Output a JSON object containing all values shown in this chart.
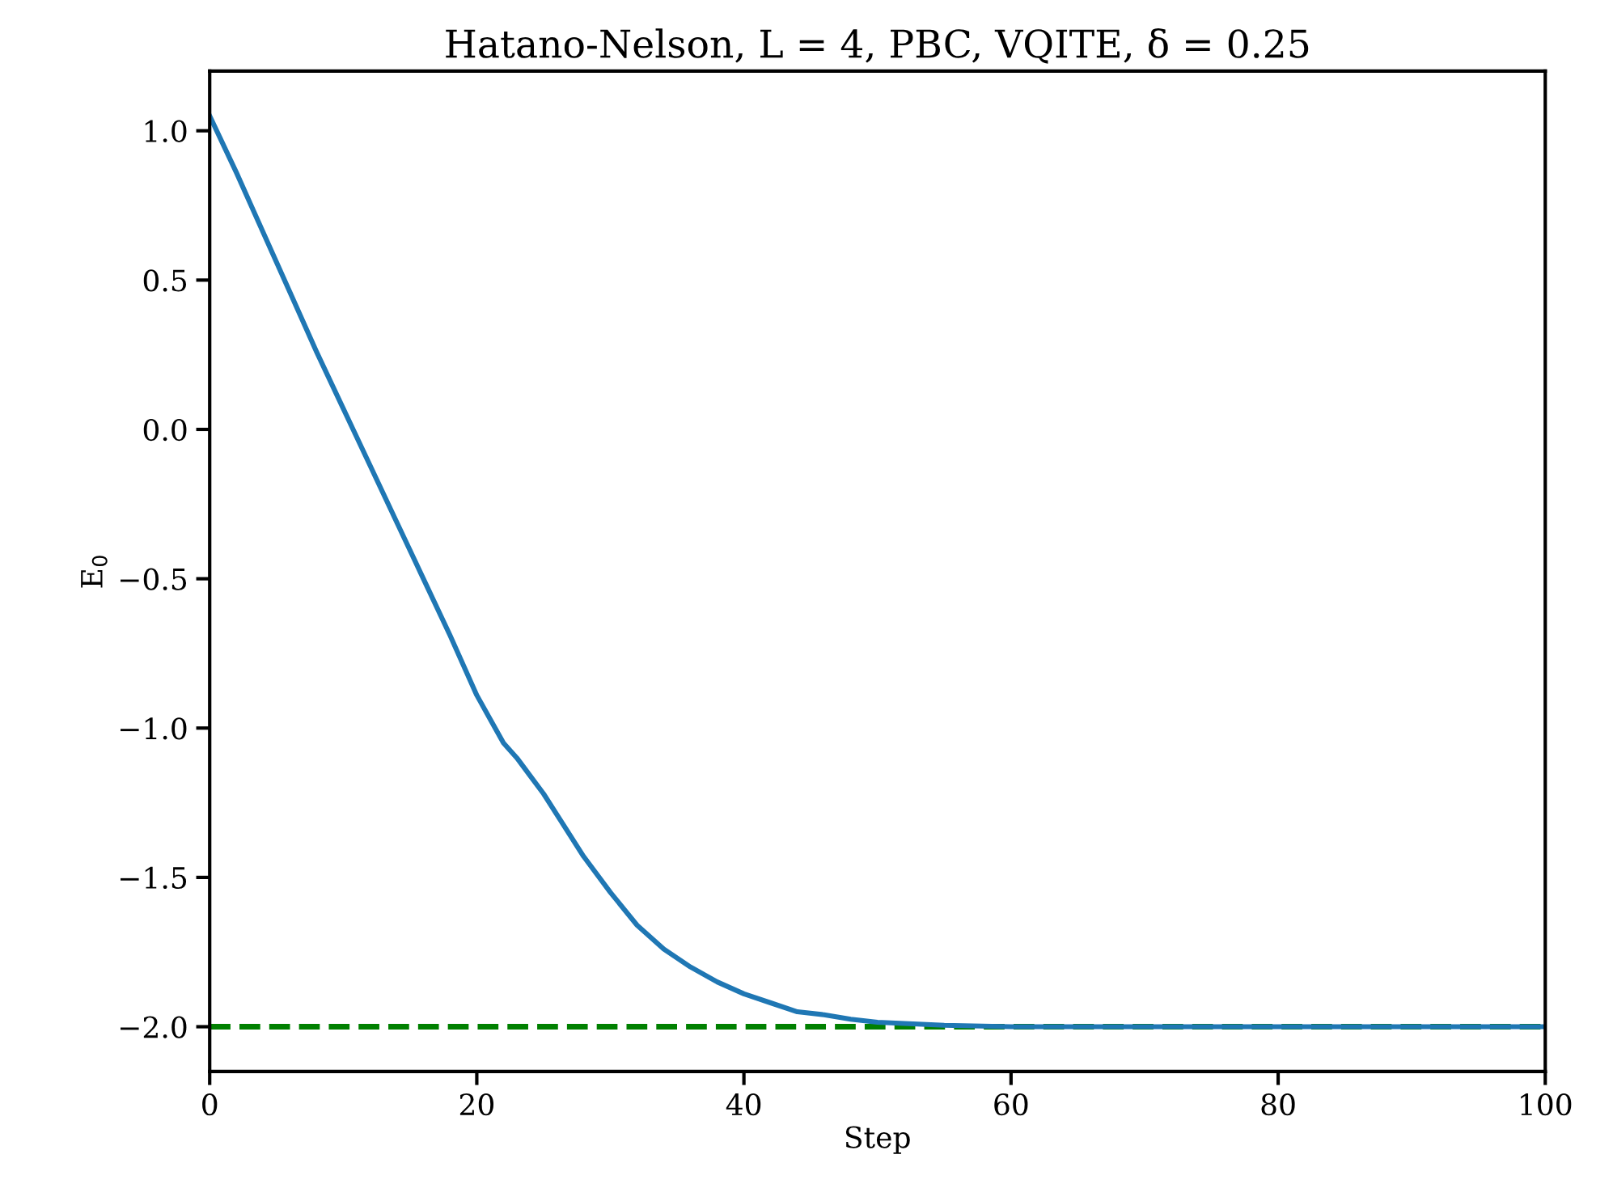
{
  "chart_data": {
    "type": "line",
    "title": "Hatano-Nelson, L = 4, PBC, VQITE, δ = 0.25",
    "xlabel": "Step",
    "ylabel": "E$_{0}$",
    "series": [
      {
        "color": "#1f77b4",
        "x": [
          0,
          2,
          4,
          6,
          8,
          10,
          12,
          14,
          16,
          18,
          20,
          21,
          22,
          23,
          24,
          25,
          26,
          28,
          30,
          32,
          34,
          36,
          38,
          40,
          42,
          44,
          46,
          48,
          50,
          55,
          60,
          70,
          80,
          90,
          100
        ],
        "values": [
          1.05,
          0.86,
          0.66,
          0.46,
          0.26,
          0.07,
          -0.12,
          -0.31,
          -0.5,
          -0.69,
          -0.89,
          -0.97,
          -1.05,
          -1.1,
          -1.16,
          -1.22,
          -1.29,
          -1.43,
          -1.55,
          -1.66,
          -1.74,
          -1.8,
          -1.85,
          -1.89,
          -1.92,
          -1.95,
          -1.96,
          -1.975,
          -1.985,
          -1.995,
          -2.0,
          -2.0,
          -2.0,
          -2.0,
          -2.0
        ]
      }
    ],
    "ref_lines": [
      {
        "axis": "y",
        "value": -2.0,
        "color": "#008000",
        "line_style": "dashed"
      }
    ],
    "xlim": [
      0,
      100
    ],
    "ylim": [
      -2.15,
      1.2
    ],
    "xticks": [
      0,
      20,
      40,
      60,
      80,
      100
    ],
    "yticks": [
      {
        "value": -2.0,
        "label": "−2.0"
      },
      {
        "value": -1.5,
        "label": "−1.5"
      },
      {
        "value": -1.0,
        "label": "−1.0"
      },
      {
        "value": -0.5,
        "label": "−0.5"
      },
      {
        "value": 0.0,
        "label": "0.0"
      },
      {
        "value": 0.5,
        "label": "0.5"
      },
      {
        "value": 1.0,
        "label": "1.0"
      }
    ],
    "grid": false,
    "legend": false
  }
}
